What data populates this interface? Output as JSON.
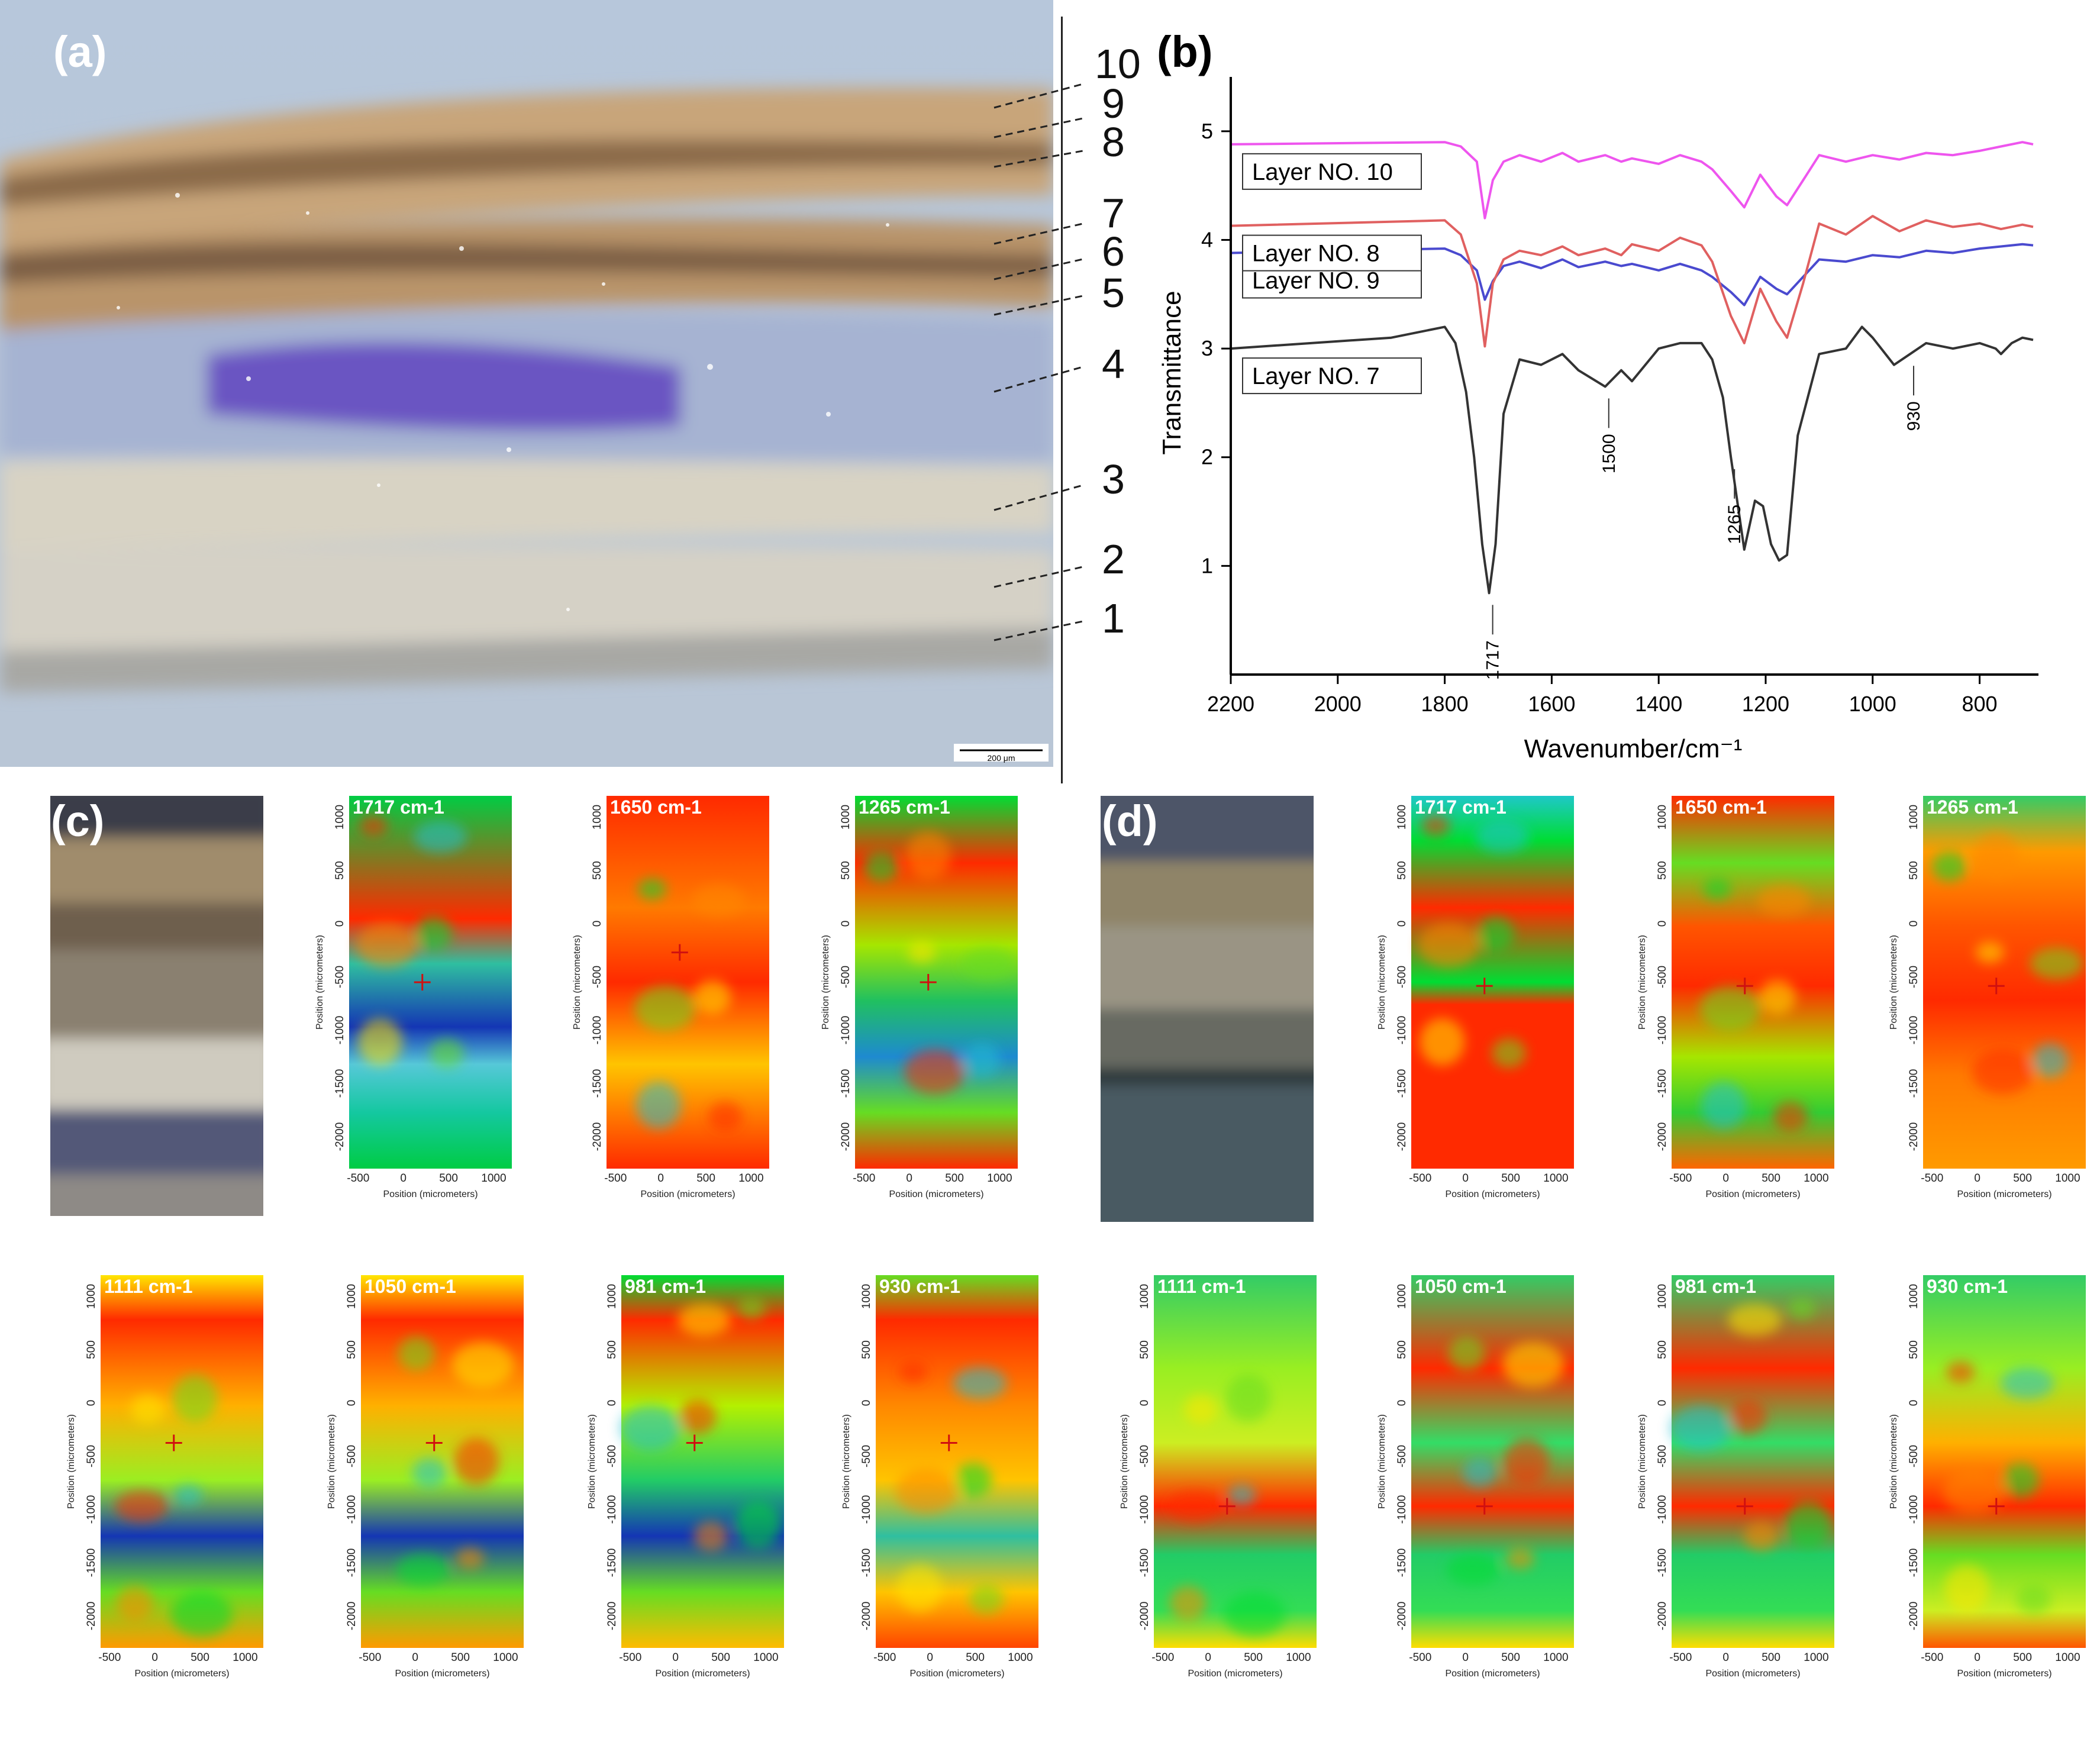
{
  "panels": {
    "a": {
      "label": "(a)",
      "layers": [
        "10",
        "9",
        "8",
        "7",
        "6",
        "5",
        "4",
        "3",
        "2",
        "1"
      ],
      "scale_bar": "200 μm"
    },
    "b": {
      "label": "(b)"
    },
    "c": {
      "label": "(c)"
    },
    "d": {
      "label": "(d)"
    }
  },
  "chart_data": {
    "type": "line",
    "xlabel": "Wavenumber/cm⁻¹",
    "ylabel": "Transmittance",
    "xlim": [
      2200,
      690
    ],
    "ylim": [
      0,
      5.5
    ],
    "x_ticks": [
      "2200",
      "2000",
      "1800",
      "1600",
      "1400",
      "1200",
      "1000",
      "800"
    ],
    "y_ticks": [
      "1",
      "2",
      "3",
      "4",
      "5"
    ],
    "x_reversed": true,
    "grid": false,
    "series": [
      {
        "name": "Layer NO. 10",
        "color": "#ee55ee",
        "x": [
          2200,
          1800,
          1770,
          1740,
          1725,
          1710,
          1690,
          1660,
          1620,
          1580,
          1550,
          1500,
          1470,
          1450,
          1400,
          1360,
          1320,
          1300,
          1265,
          1240,
          1210,
          1180,
          1160,
          1130,
          1100,
          1050,
          1000,
          950,
          900,
          850,
          800,
          760,
          720,
          700
        ],
        "y": [
          4.88,
          4.9,
          4.86,
          4.72,
          4.2,
          4.55,
          4.72,
          4.78,
          4.72,
          4.8,
          4.72,
          4.78,
          4.72,
          4.75,
          4.7,
          4.78,
          4.72,
          4.65,
          4.45,
          4.3,
          4.6,
          4.4,
          4.32,
          4.55,
          4.78,
          4.72,
          4.78,
          4.74,
          4.8,
          4.78,
          4.82,
          4.86,
          4.9,
          4.88
        ]
      },
      {
        "name": "Layer NO. 9",
        "color": "#4a4acf",
        "x": [
          2200,
          1800,
          1770,
          1740,
          1725,
          1710,
          1690,
          1660,
          1620,
          1580,
          1550,
          1500,
          1470,
          1450,
          1400,
          1360,
          1320,
          1300,
          1265,
          1240,
          1210,
          1180,
          1160,
          1130,
          1100,
          1050,
          1000,
          950,
          900,
          850,
          800,
          760,
          720,
          700
        ],
        "y": [
          3.88,
          3.92,
          3.86,
          3.72,
          3.45,
          3.62,
          3.76,
          3.8,
          3.74,
          3.82,
          3.75,
          3.8,
          3.76,
          3.78,
          3.72,
          3.78,
          3.72,
          3.66,
          3.52,
          3.4,
          3.66,
          3.55,
          3.5,
          3.66,
          3.82,
          3.8,
          3.86,
          3.84,
          3.9,
          3.88,
          3.92,
          3.94,
          3.96,
          3.95
        ]
      },
      {
        "name": "Layer NO. 8",
        "color": "#e06060",
        "x": [
          2200,
          1800,
          1770,
          1740,
          1725,
          1710,
          1690,
          1660,
          1620,
          1580,
          1550,
          1500,
          1470,
          1450,
          1400,
          1360,
          1320,
          1300,
          1265,
          1240,
          1210,
          1180,
          1160,
          1130,
          1100,
          1050,
          1000,
          950,
          900,
          850,
          800,
          760,
          720,
          700
        ],
        "y": [
          4.13,
          4.18,
          4.05,
          3.6,
          3.02,
          3.6,
          3.82,
          3.9,
          3.86,
          3.94,
          3.86,
          3.92,
          3.86,
          3.96,
          3.9,
          4.02,
          3.95,
          3.8,
          3.3,
          3.05,
          3.55,
          3.25,
          3.1,
          3.6,
          4.15,
          4.05,
          4.22,
          4.08,
          4.18,
          4.12,
          4.15,
          4.1,
          4.14,
          4.12
        ]
      },
      {
        "name": "Layer NO. 7",
        "color": "#333333",
        "x": [
          2200,
          1900,
          1800,
          1780,
          1760,
          1745,
          1730,
          1717,
          1705,
          1690,
          1660,
          1620,
          1580,
          1550,
          1500,
          1470,
          1450,
          1400,
          1360,
          1320,
          1300,
          1280,
          1265,
          1240,
          1220,
          1205,
          1190,
          1175,
          1160,
          1140,
          1100,
          1050,
          1020,
          1000,
          960,
          930,
          900,
          850,
          800,
          770,
          760,
          740,
          720,
          700
        ],
        "y": [
          3.0,
          3.1,
          3.2,
          3.05,
          2.6,
          2.0,
          1.2,
          0.75,
          1.2,
          2.4,
          2.9,
          2.85,
          2.95,
          2.8,
          2.65,
          2.8,
          2.7,
          3.0,
          3.05,
          3.05,
          2.9,
          2.55,
          2.0,
          1.15,
          1.6,
          1.55,
          1.2,
          1.05,
          1.1,
          2.2,
          2.95,
          3.0,
          3.2,
          3.1,
          2.85,
          2.95,
          3.05,
          3.0,
          3.05,
          3.0,
          2.95,
          3.05,
          3.1,
          3.08
        ]
      }
    ],
    "annotations": [
      {
        "text": "1717",
        "x": 1717
      },
      {
        "text": "1500",
        "x": 1500
      },
      {
        "text": "1265",
        "x": 1265
      },
      {
        "text": "930",
        "x": 930
      }
    ]
  },
  "maps": {
    "c": [
      {
        "title": "1717 cm-1"
      },
      {
        "title": "1650 cm-1"
      },
      {
        "title": "1265 cm-1"
      },
      {
        "title": "1111 cm-1"
      },
      {
        "title": "1050 cm-1"
      },
      {
        "title": "981 cm-1"
      },
      {
        "title": "930 cm-1"
      }
    ],
    "d": [
      {
        "title": "1717 cm-1"
      },
      {
        "title": "1650 cm-1"
      },
      {
        "title": "1265 cm-1"
      },
      {
        "title": "1111 cm-1"
      },
      {
        "title": "1050 cm-1"
      },
      {
        "title": "981 cm-1"
      },
      {
        "title": "930 cm-1"
      }
    ],
    "x_ticks": [
      "-500",
      "0",
      "500",
      "1000"
    ],
    "y_ticks": [
      "1000",
      "500",
      "0",
      "-500",
      "-1000",
      "-1500",
      "-2000"
    ],
    "x_axis_label": "Position (micrometers)",
    "y_axis_label": "Position (micrometers)"
  }
}
